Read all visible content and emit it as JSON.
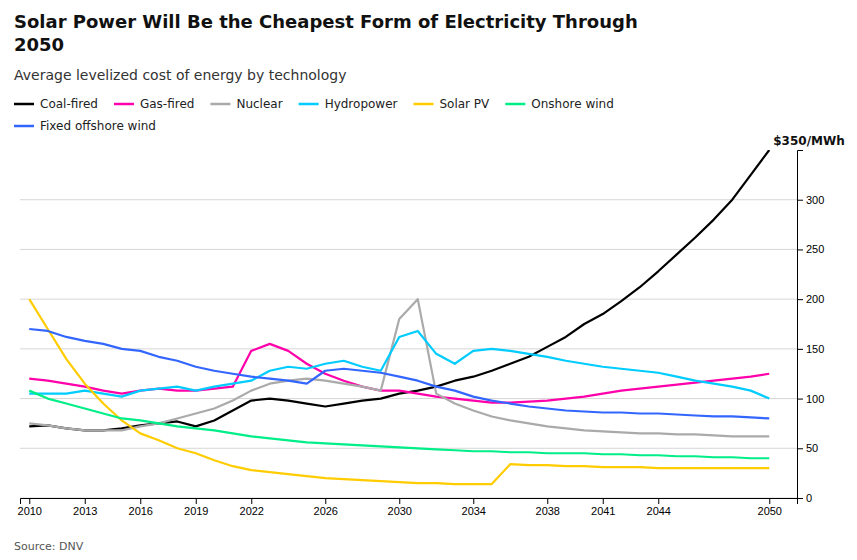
{
  "chart_data": {
    "type": "line",
    "title": "Solar Power Will Be the Cheapest Form of Electricity Through\n2050",
    "subtitle": "Average levelized cost of energy by technology",
    "source": "Source: DNV",
    "annotation": "$350/MWh",
    "x": [
      2010,
      2011,
      2012,
      2013,
      2014,
      2015,
      2016,
      2017,
      2018,
      2019,
      2020,
      2021,
      2022,
      2023,
      2024,
      2025,
      2026,
      2027,
      2028,
      2029,
      2030,
      2031,
      2032,
      2033,
      2034,
      2035,
      2036,
      2037,
      2038,
      2039,
      2040,
      2041,
      2042,
      2043,
      2044,
      2045,
      2046,
      2047,
      2048,
      2049,
      2050
    ],
    "series": [
      {
        "name": "Coal-fired",
        "color": "#000000",
        "values": [
          72,
          73,
          70,
          68,
          68,
          70,
          73,
          75,
          77,
          72,
          78,
          88,
          98,
          100,
          98,
          95,
          92,
          95,
          98,
          100,
          105,
          108,
          112,
          118,
          122,
          128,
          135,
          142,
          152,
          162,
          175,
          185,
          198,
          212,
          228,
          245,
          262,
          280,
          300,
          325,
          350
        ]
      },
      {
        "name": "Gas-fired",
        "color": "#ff00aa",
        "values": [
          120,
          118,
          115,
          112,
          108,
          105,
          108,
          110,
          108,
          108,
          110,
          112,
          148,
          155,
          148,
          135,
          125,
          118,
          112,
          108,
          108,
          105,
          102,
          100,
          98,
          96,
          96,
          97,
          98,
          100,
          102,
          105,
          108,
          110,
          112,
          114,
          116,
          118,
          120,
          122,
          125
        ]
      },
      {
        "name": "Nuclear",
        "color": "#aaaaaa",
        "values": [
          75,
          73,
          70,
          68,
          68,
          68,
          72,
          75,
          80,
          85,
          90,
          98,
          108,
          115,
          118,
          120,
          118,
          115,
          112,
          108,
          180,
          200,
          105,
          95,
          88,
          82,
          78,
          75,
          72,
          70,
          68,
          67,
          66,
          65,
          65,
          64,
          64,
          63,
          62,
          62,
          62
        ]
      },
      {
        "name": "Hydropower",
        "color": "#00ccff",
        "values": [
          105,
          105,
          105,
          108,
          105,
          102,
          108,
          110,
          112,
          108,
          112,
          115,
          118,
          128,
          132,
          130,
          135,
          138,
          132,
          128,
          162,
          168,
          145,
          135,
          148,
          150,
          148,
          145,
          142,
          138,
          135,
          132,
          130,
          128,
          126,
          122,
          118,
          115,
          112,
          108,
          100
        ]
      },
      {
        "name": "Solar PV",
        "color": "#ffcc00",
        "values": [
          200,
          170,
          140,
          115,
          95,
          78,
          65,
          58,
          50,
          45,
          38,
          32,
          28,
          26,
          24,
          22,
          20,
          19,
          18,
          17,
          16,
          15,
          15,
          14,
          14,
          14,
          34,
          33,
          33,
          32,
          32,
          31,
          31,
          31,
          30,
          30,
          30,
          30,
          30,
          30,
          30
        ]
      },
      {
        "name": "Onshore wind",
        "color": "#00ee88",
        "values": [
          108,
          100,
          95,
          90,
          85,
          80,
          78,
          75,
          72,
          70,
          68,
          65,
          62,
          60,
          58,
          56,
          55,
          54,
          53,
          52,
          51,
          50,
          49,
          48,
          47,
          47,
          46,
          46,
          45,
          45,
          45,
          44,
          44,
          43,
          43,
          42,
          42,
          41,
          41,
          40,
          40
        ]
      },
      {
        "name": "Fixed offshore wind",
        "color": "#3366ff",
        "values": [
          170,
          168,
          162,
          158,
          155,
          150,
          148,
          142,
          138,
          132,
          128,
          125,
          122,
          120,
          118,
          115,
          128,
          130,
          128,
          126,
          122,
          118,
          112,
          108,
          102,
          98,
          95,
          92,
          90,
          88,
          87,
          86,
          86,
          85,
          85,
          84,
          83,
          82,
          82,
          81,
          80
        ]
      }
    ],
    "xlim": [
      2009.5,
      2051.5
    ],
    "xticks": [
      2010,
      2013,
      2016,
      2019,
      2022,
      2026,
      2030,
      2034,
      2038,
      2041,
      2044,
      2050
    ],
    "ylim": [
      0,
      350
    ],
    "yticks": [
      0,
      50,
      100,
      150,
      200,
      250,
      300
    ],
    "grid": true
  }
}
